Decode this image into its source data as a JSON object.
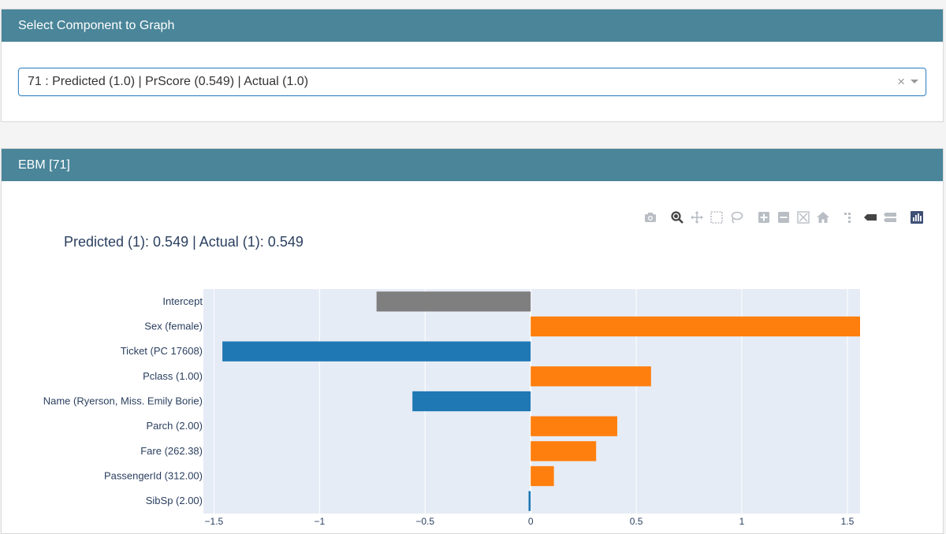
{
  "panel1": {
    "header": "Select Component to Graph"
  },
  "dropdown": {
    "value": "71 : Predicted (1.0) | PrScore (0.549) | Actual (1.0)",
    "clear": "×"
  },
  "panel2": {
    "header": "EBM [71]"
  },
  "modebar": {
    "buttons": [
      {
        "name": "camera-icon"
      },
      {
        "name": "zoom-icon"
      },
      {
        "name": "pan-icon"
      },
      {
        "name": "box-select-icon"
      },
      {
        "name": "lasso-select-icon"
      },
      {
        "name": "zoom-in-icon"
      },
      {
        "name": "zoom-out-icon"
      },
      {
        "name": "autoscale-icon"
      },
      {
        "name": "reset-axes-icon"
      },
      {
        "name": "spike-lines-icon"
      },
      {
        "name": "hover-closest-icon"
      },
      {
        "name": "hover-compare-icon"
      },
      {
        "name": "plotly-logo-icon"
      }
    ]
  },
  "chart_data": {
    "type": "bar",
    "orientation": "horizontal",
    "title": "Predicted (1): 0.549 | Actual (1): 0.549",
    "categories": [
      "Intercept",
      "Sex (female)",
      "Ticket (PC 17608)",
      "Pclass (1.00)",
      "Name (Ryerson, Miss. Emily Borie)",
      "Parch (2.00)",
      "Fare (262.38)",
      "PassengerId (312.00)",
      "SibSp (2.00)"
    ],
    "values": [
      -0.73,
      1.56,
      -1.46,
      0.57,
      -0.56,
      0.41,
      0.31,
      0.11,
      -0.01
    ],
    "colors": [
      "#7f7f7f",
      "#ff7f0e",
      "#1f77b4",
      "#ff7f0e",
      "#1f77b4",
      "#ff7f0e",
      "#ff7f0e",
      "#ff7f0e",
      "#1f77b4"
    ],
    "xlim": [
      -1.55,
      1.56
    ],
    "xticks": [
      -1.5,
      -1,
      -0.5,
      0,
      0.5,
      1,
      1.5
    ],
    "xtick_labels": [
      "−1.5",
      "−1",
      "−0.5",
      "0",
      "0.5",
      "1",
      "1.5"
    ],
    "grid": true
  }
}
